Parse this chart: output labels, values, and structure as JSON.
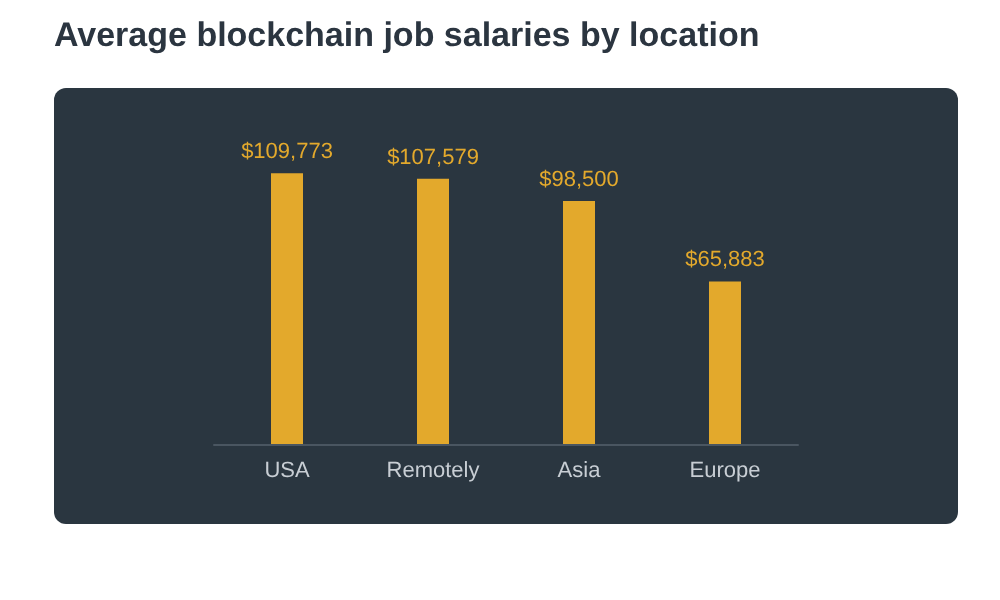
{
  "chart_data": {
    "type": "bar",
    "title": "Average blockchain job salaries by location",
    "categories": [
      "USA",
      "Remotely",
      "Asia",
      "Europe"
    ],
    "values": [
      109773,
      107579,
      98500,
      65883
    ],
    "value_labels": [
      "$109,773",
      "$107,579",
      "$98,500",
      "$65,883"
    ],
    "color": "#e3a92c",
    "tick_labels": "x"
  }
}
